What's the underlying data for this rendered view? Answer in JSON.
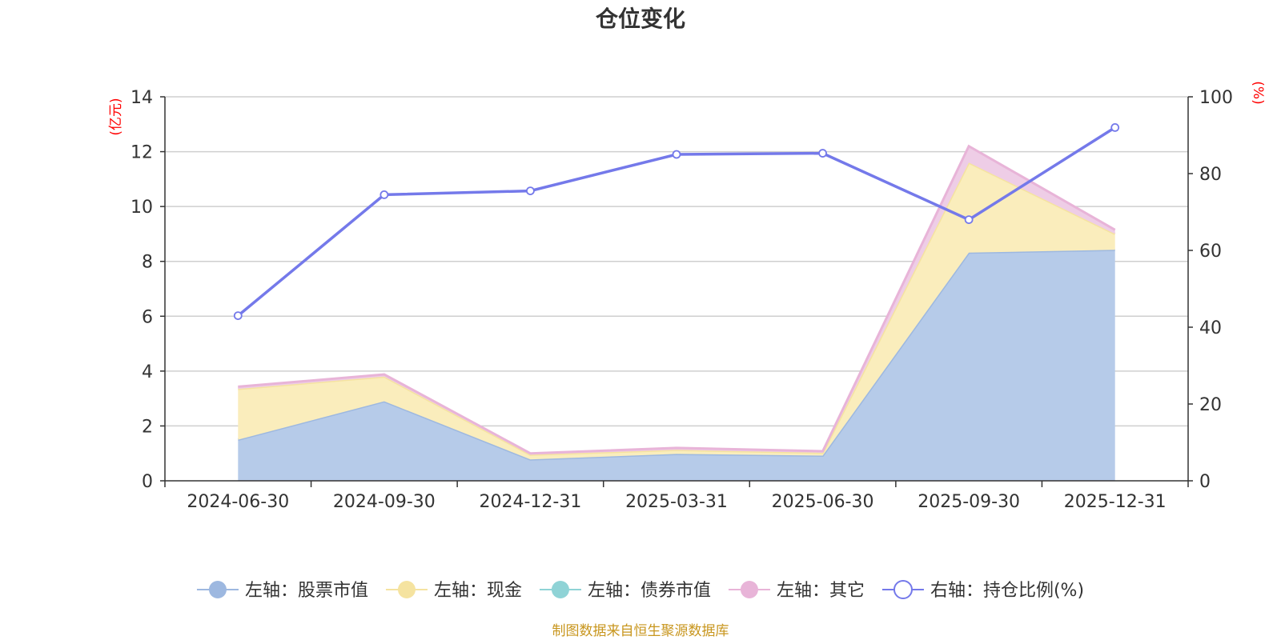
{
  "chart_data": {
    "type": "area",
    "title": "仓位变化",
    "categories": [
      "2024-06-30",
      "2024-09-30",
      "2024-12-31",
      "2025-03-31",
      "2025-06-30",
      "2025-09-30",
      "2025-12-31"
    ],
    "left_axis": {
      "label": "(亿元)",
      "ticks": [
        "0",
        "2",
        "4",
        "6",
        "8",
        "10",
        "12",
        "14"
      ],
      "ylim": [
        0,
        14
      ]
    },
    "right_axis": {
      "label": "(%)",
      "ticks": [
        "0",
        "20",
        "40",
        "60",
        "80",
        "100"
      ],
      "ylim": [
        0,
        100
      ]
    },
    "stacked_series": [
      {
        "name": "左轴：股票市值",
        "color": "#9db8e0",
        "fill": "#b6cbe9",
        "values": [
          1.5,
          2.9,
          0.78,
          0.98,
          0.92,
          8.32,
          8.42
        ]
      },
      {
        "name": "左轴：现金",
        "color": "#f5e3a0",
        "fill": "#faedbc",
        "values": [
          1.85,
          0.9,
          0.17,
          0.15,
          0.1,
          3.28,
          0.58
        ]
      },
      {
        "name": "左轴：债券市值",
        "color": "#8fd3d6",
        "fill": "#bfe7e8",
        "values": [
          0,
          0,
          0,
          0,
          0,
          0,
          0
        ]
      },
      {
        "name": "左轴：其它",
        "color": "#e8b4d8",
        "fill": "#eecde6",
        "values": [
          0.08,
          0.08,
          0.05,
          0.07,
          0.06,
          0.6,
          0.15
        ]
      }
    ],
    "line_series": {
      "name": "右轴：持仓比例(%)",
      "color": "#7479ea",
      "values": [
        43,
        74.5,
        75.5,
        85,
        85.3,
        68,
        92
      ]
    }
  },
  "footer": {
    "source": "制图数据来自恒生聚源数据库"
  }
}
